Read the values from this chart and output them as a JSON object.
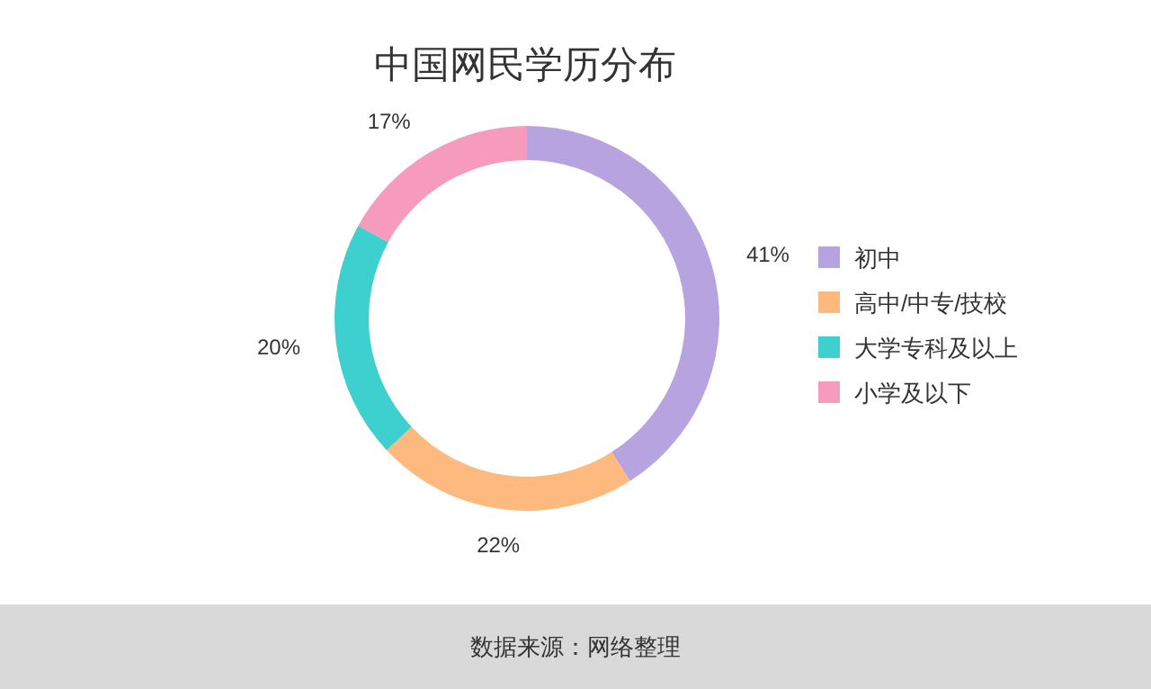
{
  "chart_data": {
    "type": "donut",
    "title": "中国网民学历分布",
    "categories": [
      "初中",
      "高中/中专/技校",
      "大学专科及以上",
      "小学及以下"
    ],
    "values": [
      41,
      22,
      20,
      17
    ],
    "colors": [
      "#b7a3e0",
      "#fdb97e",
      "#3ecfcf",
      "#f79bbd"
    ],
    "value_labels": [
      "41%",
      "22%",
      "20%",
      "17%"
    ],
    "legend": "right",
    "annotations": [
      "数据来源：网络整理"
    ]
  }
}
